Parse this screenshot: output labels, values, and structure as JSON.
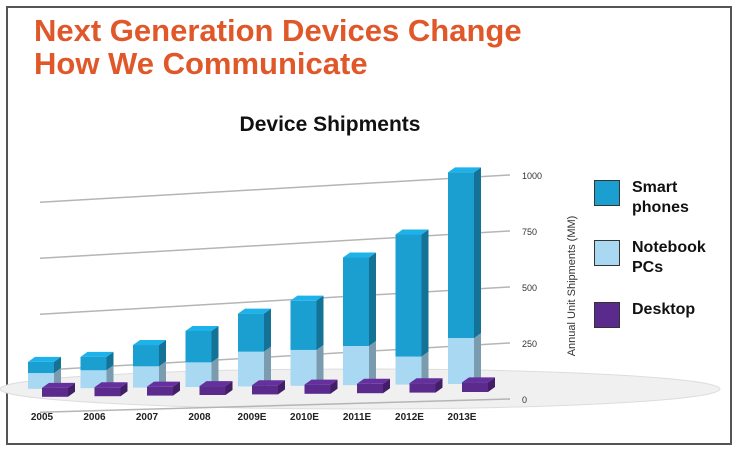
{
  "slide": {
    "headline_line1": "Next Generation Devices Change",
    "headline_line2": "How We Communicate"
  },
  "chart_data": {
    "type": "bar",
    "title": "Device Shipments",
    "ylabel": "Annual Unit Shipments (MM)",
    "xlabel": "",
    "ylim": [
      0,
      1000
    ],
    "yticks": [
      0,
      250,
      500,
      750,
      1000
    ],
    "categories": [
      "2005",
      "2006",
      "2007",
      "2008",
      "2009E",
      "2010E",
      "2011E",
      "2012E",
      "2013E"
    ],
    "stacked_series": [
      {
        "name": "Notebook PCs",
        "color": "#a9d8f2",
        "values": [
          70,
          80,
          95,
          110,
          155,
          160,
          175,
          125,
          205
        ]
      },
      {
        "name": "Smart phones",
        "color": "#1a9fd0",
        "values": [
          50,
          60,
          95,
          140,
          170,
          220,
          395,
          545,
          740
        ]
      }
    ],
    "series": [
      {
        "name": "Desktop",
        "color": "#5a2a8c",
        "values": [
          120,
          120,
          120,
          120,
          125,
          125,
          130,
          130,
          135
        ]
      }
    ],
    "legend_position": "right",
    "legend": [
      {
        "label_line1": "Smart",
        "label_line2": "phones",
        "color": "#1a9fd0"
      },
      {
        "label_line1": "Notebook",
        "label_line2": "PCs",
        "color": "#a9d8f2"
      },
      {
        "label_line1": "Desktop",
        "label_line2": "",
        "color": "#5a2a8c"
      }
    ],
    "grid": true
  }
}
